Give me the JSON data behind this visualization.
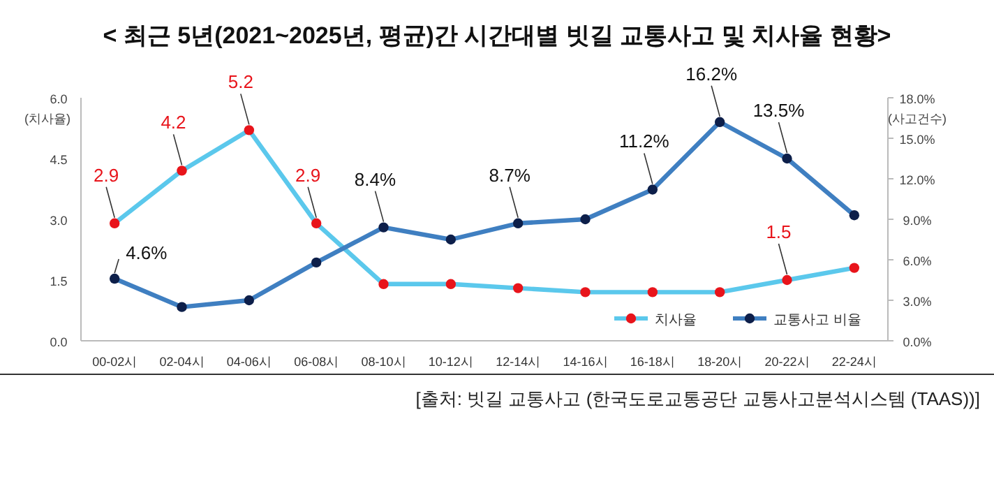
{
  "chart_data": {
    "type": "line",
    "title": "< 최근 5년(2021~2025년, 평균)간 시간대별 빗길 교통사고 및 치사율 현황>",
    "categories": [
      "00-02시",
      "02-04시",
      "04-06시",
      "06-08시",
      "08-10시",
      "10-12시",
      "12-14시",
      "14-16시",
      "16-18시",
      "18-20시",
      "20-22시",
      "22-24시"
    ],
    "series": [
      {
        "name": "치사율",
        "color": "#5bc8ec",
        "colors": [
          "#e8141b",
          "#e8141b",
          "#e8141b",
          "#e8141b",
          "#e8141b",
          "#e8141b",
          "#e8141b",
          "#e8141b",
          "#e8141b",
          "#e8141b",
          "#e8141b",
          "#e8141b"
        ],
        "values": [
          2.9,
          4.2,
          5.2,
          2.9,
          1.4,
          1.4,
          1.3,
          1.2,
          1.2,
          1.2,
          1.5,
          1.8
        ],
        "value_labels": [
          "2.9",
          "4.2",
          "5.2",
          "2.9",
          null,
          null,
          null,
          null,
          null,
          null,
          "1.5",
          null
        ]
      },
      {
        "name": "교통사고 비율",
        "color": "#3f7fc1",
        "axis": "y2",
        "colors": [
          "#0d1f4a",
          "#0d1f4a",
          "#0d1f4a",
          "#0d1f4a",
          "#0d1f4a",
          "#0d1f4a",
          "#0d1f4a",
          "#0d1f4a",
          "#0d1f4a",
          "#0d1f4a",
          "#0d1f4a",
          "#0d1f4a"
        ],
        "values": [
          4.6,
          2.5,
          3.0,
          5.8,
          8.4,
          7.5,
          8.7,
          9.0,
          11.2,
          16.2,
          13.5,
          9.3
        ],
        "value_labels": [
          "4.6%",
          null,
          null,
          null,
          "8.4%",
          null,
          "8.7%",
          null,
          "11.2%",
          "16.2%",
          "13.5%",
          null
        ]
      }
    ],
    "ylabel": "(치사율)",
    "y2label": "(사고건수)",
    "ylim": [
      0,
      6
    ],
    "yticks": [
      {
        "value": 0,
        "label": "0.0"
      },
      {
        "value": 1.5,
        "label": "1.5"
      },
      {
        "value": 3,
        "label": "3.0"
      },
      {
        "value": 4.5,
        "label": "4.5"
      },
      {
        "value": 6,
        "label": "6.0"
      }
    ],
    "y2lim": [
      0,
      18
    ],
    "y2ticks": [
      {
        "value": 0,
        "label": "0.0%"
      },
      {
        "value": 3,
        "label": "3.0%"
      },
      {
        "value": 6,
        "label": "6.0%"
      },
      {
        "value": 9,
        "label": "9.0%"
      },
      {
        "value": 12,
        "label": "12.0%"
      },
      {
        "value": 15,
        "label": "15.0%"
      },
      {
        "value": 18,
        "label": "18.0%"
      }
    ],
    "marker": "circle",
    "line_style": "solid",
    "legend": "bottom right",
    "grid": false,
    "annotations": [
      "[출처:  빗길  교통사고 (한국도로교통공단  교통사고분석시스템 (TAAS))]"
    ]
  }
}
